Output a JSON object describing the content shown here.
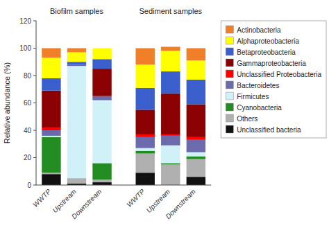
{
  "chart_data": {
    "type": "bar",
    "stacked": true,
    "y_label": "Relative abundance (%)",
    "annotations": [
      "Biofilm samples",
      "Sediment samples"
    ],
    "categories": [
      "WWTP",
      "Upstream",
      "Downstream",
      "WWTP",
      "Upstream",
      "Downstream"
    ],
    "series": [
      {
        "name": "Unclassified bacteria",
        "color": "#111111",
        "values": [
          8,
          1,
          2,
          9,
          0,
          6
        ]
      },
      {
        "name": "Others",
        "color": "#b0b0b0",
        "values": [
          1,
          4,
          2,
          14,
          15,
          13
        ]
      },
      {
        "name": "Cyanobacteria",
        "color": "#228b22",
        "values": [
          26,
          0,
          12,
          2,
          1,
          2
        ]
      },
      {
        "name": "Firmicutes",
        "color": "#cff1f7",
        "values": [
          1,
          82,
          46,
          2,
          13,
          3
        ]
      },
      {
        "name": "Bacteroidetes",
        "color": "#6a6aad",
        "values": [
          4,
          1,
          3,
          8,
          7,
          9
        ]
      },
      {
        "name": "Unclassified Proteobacteria",
        "color": "#ff0000",
        "values": [
          2,
          0,
          0,
          2,
          1,
          2
        ]
      },
      {
        "name": "Gammaproteobacteria",
        "color": "#8b0000",
        "values": [
          27,
          0,
          20,
          18,
          30,
          24
        ]
      },
      {
        "name": "Betaproteobacteria",
        "color": "#3a5fcd",
        "values": [
          9,
          2,
          7,
          16,
          16,
          18
        ]
      },
      {
        "name": "Alphaproteobacteria",
        "color": "#ffff00",
        "values": [
          15,
          7,
          8,
          17,
          15,
          14
        ]
      },
      {
        "name": "Actinobacteria",
        "color": "#f07f2a",
        "values": [
          7,
          3,
          0,
          12,
          3,
          9
        ]
      }
    ],
    "ylim": [
      0,
      120
    ],
    "yticks": [
      0,
      20,
      40,
      60,
      80,
      100,
      120
    ],
    "grid": false,
    "legend": "right"
  }
}
